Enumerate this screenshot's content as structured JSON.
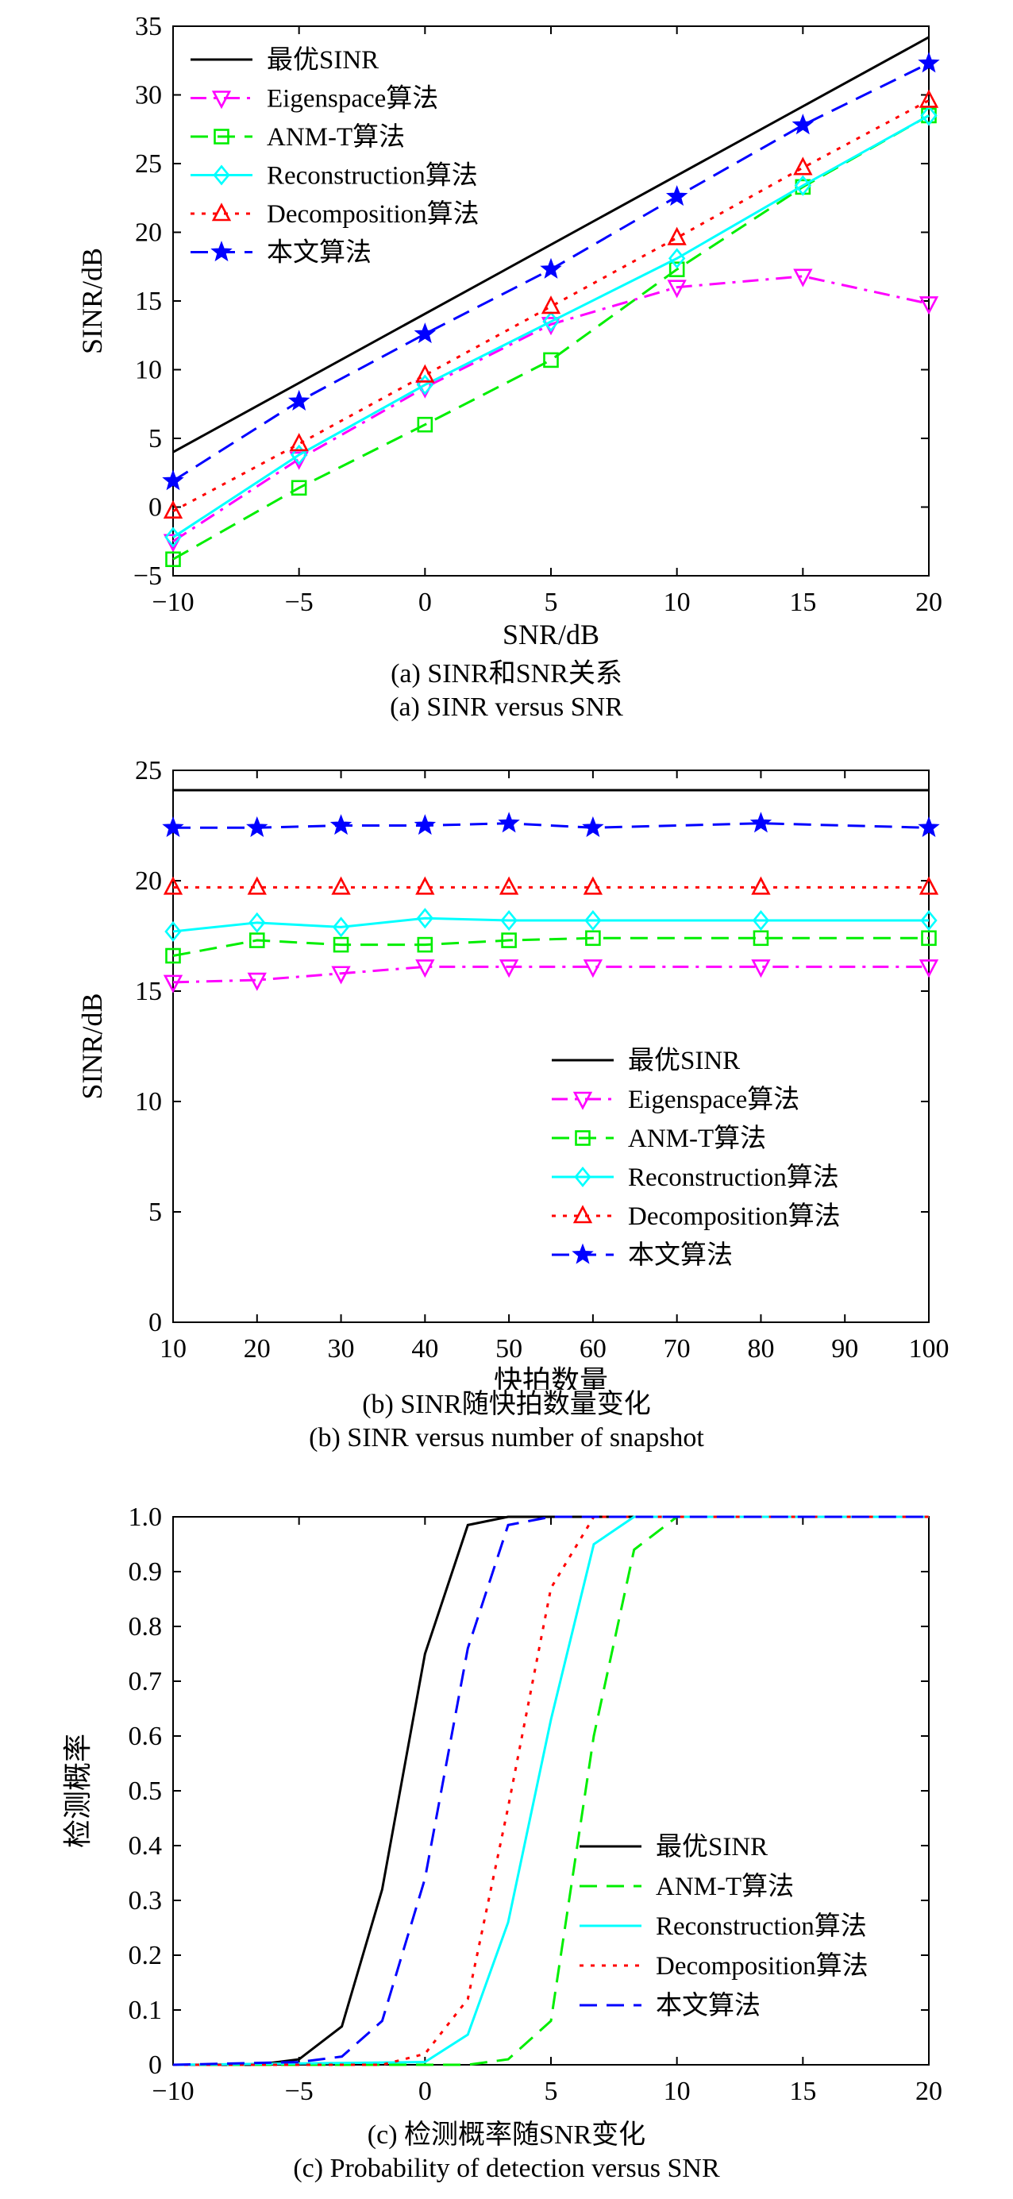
{
  "chart_data": [
    {
      "type": "line",
      "panel_label": "(a)",
      "caption_cn": "(a) SINR和SNR关系",
      "caption_en": "(a) SINR versus SNR",
      "xlabel": "SNR/dB",
      "ylabel": "SINR/dB",
      "xlim": [
        -10,
        20
      ],
      "ylim": [
        -5,
        35
      ],
      "xticks": [
        -10,
        -5,
        0,
        5,
        10,
        15,
        20
      ],
      "yticks": [
        -5,
        0,
        5,
        10,
        15,
        20,
        25,
        30,
        35
      ],
      "x": [
        -10,
        -5,
        0,
        5,
        10,
        15,
        20
      ],
      "legend_position": "top-left",
      "grid": false,
      "series": [
        {
          "name": "最优SINR",
          "color": "#000000",
          "dash": "solid",
          "marker": "none",
          "x": [
            -10,
            20
          ],
          "values": [
            4.0,
            34.2
          ]
        },
        {
          "name": "Eigenspace算法",
          "color": "#ff00ff",
          "dash": "dashdot",
          "marker": "tri_down",
          "values": [
            -2.5,
            3.5,
            8.7,
            13.3,
            16.0,
            16.8,
            14.8
          ]
        },
        {
          "name": "ANM-T算法",
          "color": "#00ee00",
          "dash": "dashed",
          "marker": "square",
          "values": [
            -3.8,
            1.4,
            6.0,
            10.7,
            17.3,
            23.3,
            28.5
          ]
        },
        {
          "name": "Reconstruction算法",
          "color": "#00ffff",
          "dash": "solid",
          "marker": "diamond",
          "values": [
            -2.2,
            3.8,
            8.9,
            13.5,
            18.1,
            23.4,
            28.5
          ]
        },
        {
          "name": "Decomposition算法",
          "color": "#ff0000",
          "dash": "dotted",
          "marker": "tri_up",
          "values": [
            -0.3,
            4.6,
            9.6,
            14.6,
            19.6,
            24.7,
            29.6
          ]
        },
        {
          "name": "本文算法",
          "color": "#0000ff",
          "dash": "dashed",
          "marker": "star",
          "values": [
            1.9,
            7.7,
            12.6,
            17.3,
            22.6,
            27.8,
            32.3
          ]
        }
      ]
    },
    {
      "type": "line",
      "panel_label": "(b)",
      "caption_cn": "(b) SINR随快拍数量变化",
      "caption_en": "(b) SINR versus number of snapshot",
      "xlabel": "快拍数量",
      "ylabel": "SINR/dB",
      "xlim": [
        10,
        100
      ],
      "ylim": [
        0,
        25
      ],
      "xticks": [
        10,
        20,
        30,
        40,
        50,
        60,
        70,
        80,
        90,
        100
      ],
      "yticks": [
        0,
        5,
        10,
        15,
        20,
        25
      ],
      "x": [
        10,
        20,
        30,
        40,
        50,
        60,
        80,
        100
      ],
      "legend_position": "lower-right",
      "grid": false,
      "series": [
        {
          "name": "最优SINR",
          "color": "#000000",
          "dash": "solid",
          "marker": "none",
          "x": [
            10,
            100
          ],
          "values": [
            24.1,
            24.1
          ]
        },
        {
          "name": "Eigenspace算法",
          "color": "#ff00ff",
          "dash": "dashdot",
          "marker": "tri_down",
          "values": [
            15.4,
            15.5,
            15.8,
            16.1,
            16.1,
            16.1,
            16.1,
            16.1
          ]
        },
        {
          "name": "ANM-T算法",
          "color": "#00ee00",
          "dash": "dashed",
          "marker": "square",
          "values": [
            16.6,
            17.3,
            17.1,
            17.1,
            17.3,
            17.4,
            17.4,
            17.4
          ]
        },
        {
          "name": "Reconstruction算法",
          "color": "#00ffff",
          "dash": "solid",
          "marker": "diamond",
          "values": [
            17.7,
            18.1,
            17.9,
            18.3,
            18.2,
            18.2,
            18.2,
            18.2
          ]
        },
        {
          "name": "Decomposition算法",
          "color": "#ff0000",
          "dash": "dotted",
          "marker": "tri_up",
          "values": [
            19.7,
            19.7,
            19.7,
            19.7,
            19.7,
            19.7,
            19.7,
            19.7
          ]
        },
        {
          "name": "本文算法",
          "color": "#0000ff",
          "dash": "dashed",
          "marker": "star",
          "values": [
            22.4,
            22.4,
            22.5,
            22.5,
            22.6,
            22.4,
            22.6,
            22.4
          ]
        }
      ]
    },
    {
      "type": "line",
      "panel_label": "(c)",
      "caption_cn": "(c) 检测概率随SNR变化",
      "caption_en": "(c) Probability of detection versus SNR",
      "xlabel": "SNR/dB",
      "ylabel": "检测概率",
      "xlim": [
        -10,
        20
      ],
      "ylim": [
        0,
        1.0
      ],
      "xticks": [
        -10,
        -5,
        0,
        5,
        10,
        15,
        20
      ],
      "yticks": [
        "0",
        "0.1",
        "0.2",
        "0.3",
        "0.4",
        "0.5",
        "0.6",
        "0.7",
        "0.8",
        "0.9",
        "1.0"
      ],
      "legend_position": "lower-right",
      "grid": false,
      "series": [
        {
          "name": "最优SINR",
          "color": "#000000",
          "dash": "solid",
          "marker": "none",
          "x": [
            -10,
            -6.7,
            -5,
            -3.3,
            -1.7,
            0,
            1.7,
            3.3,
            5,
            20
          ],
          "values": [
            0,
            0,
            0.01,
            0.07,
            0.32,
            0.75,
            0.985,
            1.0,
            1.0,
            1.0
          ]
        },
        {
          "name": "ANM-T算法",
          "color": "#00ee00",
          "dash": "dashed",
          "marker": "none",
          "x": [
            -10,
            1.7,
            3.3,
            5,
            6.7,
            8.3,
            10,
            20
          ],
          "values": [
            0,
            0,
            0.01,
            0.08,
            0.6,
            0.94,
            1.0,
            1.0
          ]
        },
        {
          "name": "Reconstruction算法",
          "color": "#00ffff",
          "dash": "solid",
          "marker": "none",
          "x": [
            -10,
            0,
            1.7,
            3.3,
            5,
            6.7,
            8.3,
            20
          ],
          "values": [
            0,
            0.005,
            0.055,
            0.26,
            0.63,
            0.95,
            1.0,
            1.0
          ]
        },
        {
          "name": "Decomposition算法",
          "color": "#ff0000",
          "dash": "dotted",
          "marker": "none",
          "x": [
            -10,
            -1.7,
            0,
            1.7,
            3.3,
            5,
            6.7,
            20
          ],
          "values": [
            0,
            0,
            0.02,
            0.12,
            0.47,
            0.87,
            1.0,
            1.0
          ]
        },
        {
          "name": "本文算法",
          "color": "#0000ff",
          "dash": "dashed",
          "marker": "none",
          "x": [
            -10,
            -5,
            -3.3,
            -1.7,
            0,
            1.7,
            3.3,
            5,
            20
          ],
          "values": [
            0,
            0.005,
            0.015,
            0.08,
            0.34,
            0.76,
            0.985,
            1.0,
            1.0
          ]
        }
      ]
    }
  ]
}
